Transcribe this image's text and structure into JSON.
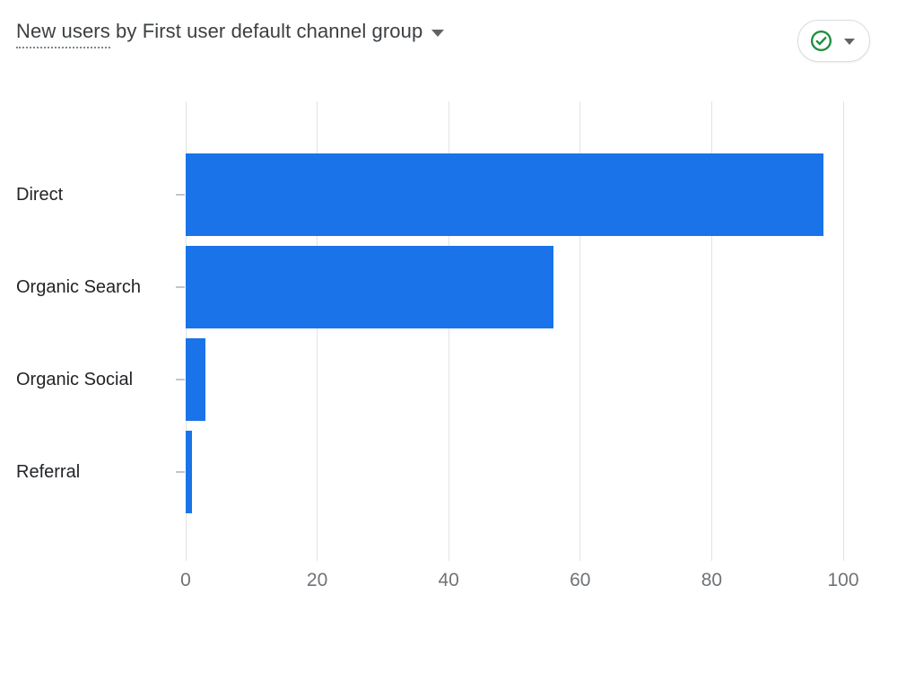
{
  "header": {
    "title_prefix": "New users",
    "title_suffix": " by First user default channel group",
    "quality_button": {
      "check_icon": "check-circle-icon",
      "caret_icon": "caret-down-icon",
      "check_color": "#1e8e3e"
    },
    "title_caret_icon": "caret-down-icon"
  },
  "chart_data": {
    "type": "bar",
    "orientation": "horizontal",
    "title": "New users by First user default channel group",
    "categories": [
      "Direct",
      "Organic Search",
      "Organic Social",
      "Referral"
    ],
    "values": [
      97,
      56,
      3,
      1
    ],
    "xlabel": "",
    "ylabel": "",
    "xlim": [
      0,
      100
    ],
    "xticks": [
      0,
      20,
      40,
      60,
      80,
      100
    ],
    "grid": true,
    "legend": false,
    "bar_color": "#1a73e8",
    "gridline_color": "#e1e3e6"
  }
}
